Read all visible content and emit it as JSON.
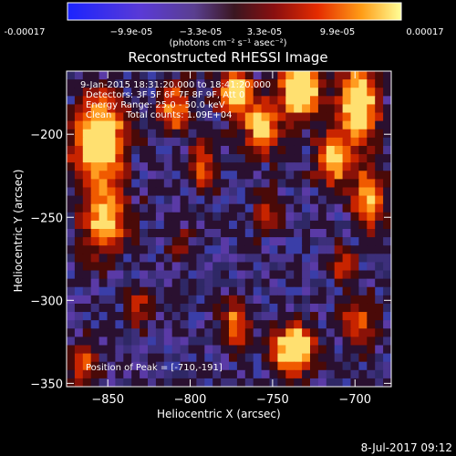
{
  "colorbar": {
    "ticks": [
      "-0.00017",
      "−9.9e-05",
      "−3.3e-05",
      "3.3e-05",
      "9.9e-05",
      "0.00017"
    ],
    "units": "(photons cm⁻² s⁻¹ asec⁻²)"
  },
  "info": {
    "time": "9-Jan-2015 18:31:20.000 to 18:41:20.000",
    "detectors": "Detectors: 3F 5F 6F 7F 8F 9F, Att 0",
    "energy": "Energy Range: 25.0 - 50.0 keV",
    "clean": "Clean     Total counts: 1.09E+04",
    "peak": "Position of Peak = [-710,-191]"
  },
  "timestamp": "8-Jul-2017 09:12",
  "chart_data": {
    "type": "heatmap",
    "title": "Reconstructed RHESSI Image",
    "xlabel": "Heliocentric X (arcsec)",
    "ylabel": "Heliocentric Y (arcsec)",
    "xlim": [
      -875,
      -678
    ],
    "ylim": [
      -352,
      -162
    ],
    "xticks": [
      -850,
      -800,
      -750,
      -700
    ],
    "yticks": [
      -350,
      -300,
      -250,
      -200
    ],
    "colorscale": {
      "min": -0.00017,
      "max": 0.00017
    },
    "peak": [
      -710,
      -191
    ]
  }
}
